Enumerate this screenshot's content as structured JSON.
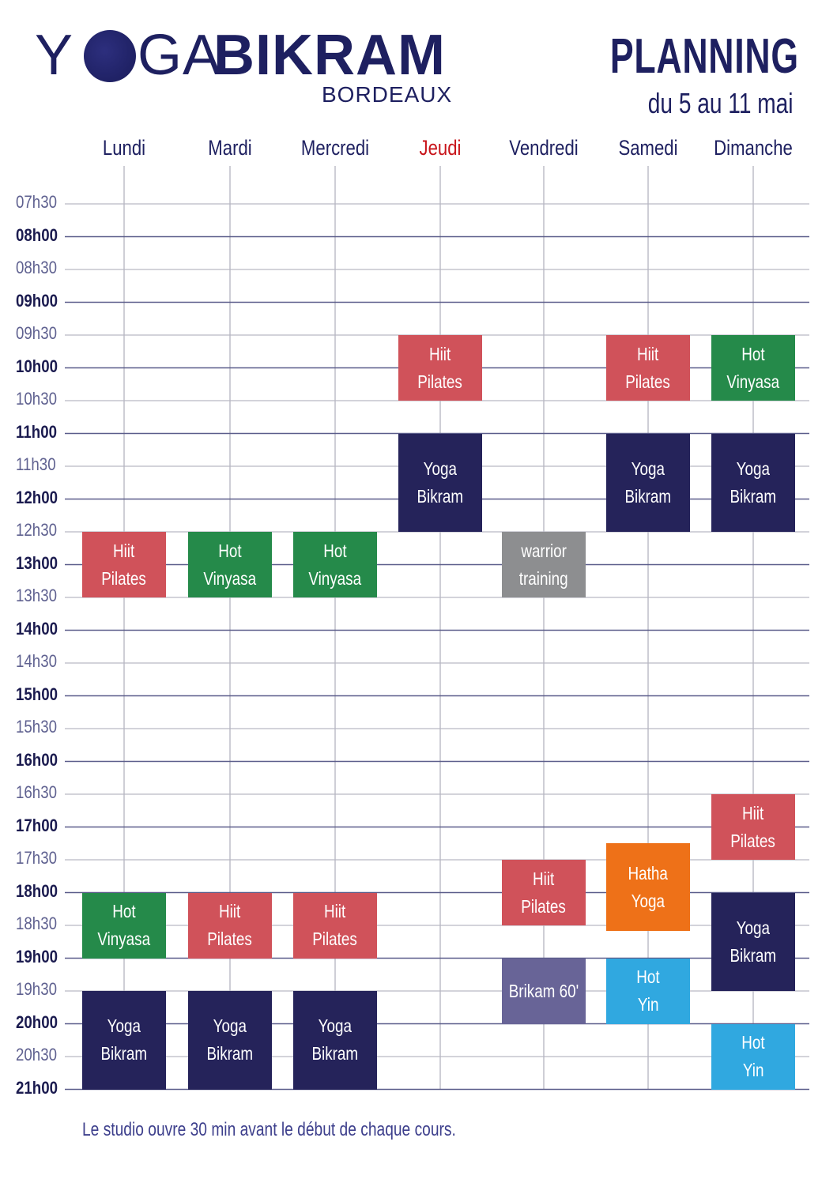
{
  "logo": {
    "yoga_y": "Y",
    "yoga_ga": "GA",
    "bikram": "BIKRAM",
    "city": "BORDEAUX"
  },
  "header": {
    "title": "PLANNING",
    "subtitle": "du 5 au 11 mai"
  },
  "days": [
    {
      "label": "Lundi",
      "highlight": false
    },
    {
      "label": "Mardi",
      "highlight": false
    },
    {
      "label": "Mercredi",
      "highlight": false
    },
    {
      "label": "Jeudi",
      "highlight": true
    },
    {
      "label": "Vendredi",
      "highlight": false
    },
    {
      "label": "Samedi",
      "highlight": false
    },
    {
      "label": "Dimanche",
      "highlight": false
    }
  ],
  "times": [
    "07h30",
    "08h00",
    "08h30",
    "09h00",
    "09h30",
    "10h00",
    "10h30",
    "11h00",
    "11h30",
    "12h00",
    "12h30",
    "13h00",
    "13h30",
    "14h00",
    "14h30",
    "15h00",
    "15h30",
    "16h00",
    "16h30",
    "17h00",
    "17h30",
    "18h00",
    "18h30",
    "19h00",
    "19h30",
    "20h00",
    "20h30",
    "21h00"
  ],
  "colors": {
    "hiit_pilates": "#d0525a",
    "hot_vinyasa": "#258a4a",
    "yoga_bikram": "#25235a",
    "warrior_training": "#8d8e90",
    "hatha_yoga": "#ee7118",
    "hot_yin": "#30a8e0",
    "brikam_60": "#686497",
    "accent": "#1e2060",
    "highlight": "#c8141a"
  },
  "classes": [
    {
      "day": "Jeudi",
      "start": "09h30",
      "end": "10h30",
      "lines": [
        "Hiit",
        "Pilates"
      ],
      "color_key": "hiit_pilates"
    },
    {
      "day": "Jeudi",
      "start": "11h00",
      "end": "12h30",
      "lines": [
        "Yoga",
        "Bikram"
      ],
      "color_key": "yoga_bikram"
    },
    {
      "day": "Samedi",
      "start": "09h30",
      "end": "10h30",
      "lines": [
        "Hiit",
        "Pilates"
      ],
      "color_key": "hiit_pilates"
    },
    {
      "day": "Samedi",
      "start": "11h00",
      "end": "12h30",
      "lines": [
        "Yoga",
        "Bikram"
      ],
      "color_key": "yoga_bikram"
    },
    {
      "day": "Dimanche",
      "start": "09h30",
      "end": "10h30",
      "lines": [
        "Hot",
        "Vinyasa"
      ],
      "color_key": "hot_vinyasa"
    },
    {
      "day": "Dimanche",
      "start": "11h00",
      "end": "12h30",
      "lines": [
        "Yoga",
        "Bikram"
      ],
      "color_key": "yoga_bikram"
    },
    {
      "day": "Lundi",
      "start": "12h30",
      "end": "13h30",
      "lines": [
        "Hiit",
        "Pilates"
      ],
      "color_key": "hiit_pilates"
    },
    {
      "day": "Mardi",
      "start": "12h30",
      "end": "13h30",
      "lines": [
        "Hot",
        "Vinyasa"
      ],
      "color_key": "hot_vinyasa"
    },
    {
      "day": "Mercredi",
      "start": "12h30",
      "end": "13h30",
      "lines": [
        "Hot",
        "Vinyasa"
      ],
      "color_key": "hot_vinyasa"
    },
    {
      "day": "Vendredi",
      "start": "12h30",
      "end": "13h30",
      "lines": [
        "warrior",
        "training"
      ],
      "color_key": "warrior_training"
    },
    {
      "day": "Dimanche",
      "start": "16h30",
      "end": "17h30",
      "lines": [
        "Hiit",
        "Pilates"
      ],
      "color_key": "hiit_pilates"
    },
    {
      "day": "Vendredi",
      "start": "17h30",
      "end": "18h30",
      "lines": [
        "Hiit",
        "Pilates"
      ],
      "color_key": "hiit_pilates"
    },
    {
      "day": "Samedi",
      "start": "17h15",
      "end": "18h35",
      "lines": [
        "Hatha",
        "Yoga"
      ],
      "color_key": "hatha_yoga"
    },
    {
      "day": "Lundi",
      "start": "18h00",
      "end": "19h00",
      "lines": [
        "Hot",
        "Vinyasa"
      ],
      "color_key": "hot_vinyasa"
    },
    {
      "day": "Mardi",
      "start": "18h00",
      "end": "19h00",
      "lines": [
        "Hiit",
        "Pilates"
      ],
      "color_key": "hiit_pilates"
    },
    {
      "day": "Mercredi",
      "start": "18h00",
      "end": "19h00",
      "lines": [
        "Hiit",
        "Pilates"
      ],
      "color_key": "hiit_pilates"
    },
    {
      "day": "Dimanche",
      "start": "18h00",
      "end": "19h30",
      "lines": [
        "Yoga",
        "Bikram"
      ],
      "color_key": "yoga_bikram"
    },
    {
      "day": "Vendredi",
      "start": "19h00",
      "end": "20h00",
      "lines": [
        "Brikam 60'"
      ],
      "color_key": "brikam_60"
    },
    {
      "day": "Samedi",
      "start": "19h00",
      "end": "20h00",
      "lines": [
        "Hot",
        "Yin"
      ],
      "color_key": "hot_yin"
    },
    {
      "day": "Lundi",
      "start": "19h30",
      "end": "21h00",
      "lines": [
        "Yoga",
        "Bikram"
      ],
      "color_key": "yoga_bikram"
    },
    {
      "day": "Mardi",
      "start": "19h30",
      "end": "21h00",
      "lines": [
        "Yoga",
        "Bikram"
      ],
      "color_key": "yoga_bikram"
    },
    {
      "day": "Mercredi",
      "start": "19h30",
      "end": "21h00",
      "lines": [
        "Yoga",
        "Bikram"
      ],
      "color_key": "yoga_bikram"
    },
    {
      "day": "Dimanche",
      "start": "20h00",
      "end": "21h00",
      "lines": [
        "Hot",
        "Yin"
      ],
      "color_key": "hot_yin"
    }
  ],
  "footer": {
    "note": "Le studio ouvre 30 min avant le début de chaque cours."
  }
}
